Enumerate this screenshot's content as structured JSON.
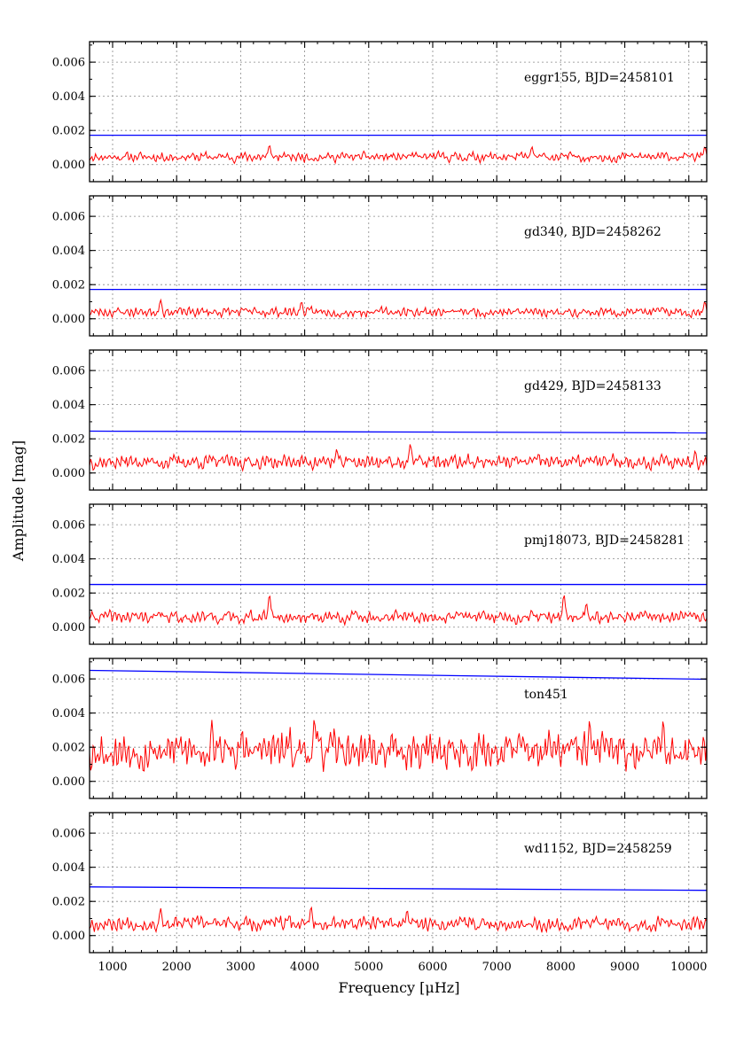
{
  "chart_data": {
    "type": "line",
    "xlabel": "Frequency [μHz]",
    "ylabel": "Amplitude [mag]",
    "xlim": [
      640,
      10280
    ],
    "ylim": [
      -0.001,
      0.0072
    ],
    "xticks": [
      1000,
      2000,
      3000,
      4000,
      5000,
      6000,
      7000,
      8000,
      9000,
      10000
    ],
    "xtick_labels": [
      "1000",
      "2000",
      "3000",
      "4000",
      "5000",
      "6000",
      "7000",
      "8000",
      "9000",
      "10000"
    ],
    "yticks": [
      0.0,
      0.002,
      0.004,
      0.006
    ],
    "ytick_labels": [
      "0.000",
      "0.002",
      "0.004",
      "0.006"
    ],
    "grid": true,
    "series_colors": {
      "amplitude_spectrum": "#ff0000",
      "threshold": "#0000ff"
    },
    "panels": [
      {
        "label": "eggr155, BJD=2458101",
        "threshold": [
          0.00172,
          0.00172
        ],
        "noise_level": 0.00045,
        "noise_spread": 0.0003,
        "peaks": [
          [
            3450,
            0.00115
          ],
          [
            7550,
            0.00105
          ],
          [
            10250,
            0.00105
          ]
        ],
        "seed": 11
      },
      {
        "label": "gd340, BJD=2458262",
        "threshold": [
          0.00172,
          0.00172
        ],
        "noise_level": 0.0004,
        "noise_spread": 0.0003,
        "peaks": [
          [
            1750,
            0.0011
          ],
          [
            3950,
            0.001
          ],
          [
            10250,
            0.001
          ]
        ],
        "seed": 23
      },
      {
        "label": "gd429, BJD=2458133",
        "threshold": [
          0.00245,
          0.00235
        ],
        "noise_level": 0.00065,
        "noise_spread": 0.00045,
        "peaks": [
          [
            5650,
            0.0017
          ],
          [
            4500,
            0.0014
          ],
          [
            10100,
            0.0013
          ]
        ],
        "seed": 37
      },
      {
        "label": "pmj18073, BJD=2458281",
        "threshold": [
          0.0025,
          0.0025
        ],
        "noise_level": 0.0006,
        "noise_spread": 0.0004,
        "peaks": [
          [
            3450,
            0.0019
          ],
          [
            8050,
            0.0019
          ],
          [
            8400,
            0.0014
          ]
        ],
        "seed": 41
      },
      {
        "label": "ton451",
        "threshold": [
          0.0065,
          0.00598
        ],
        "noise_level": 0.0018,
        "noise_spread": 0.0012,
        "peaks": [
          [
            4150,
            0.0037
          ],
          [
            2550,
            0.0036
          ],
          [
            8450,
            0.0036
          ],
          [
            9600,
            0.0036
          ]
        ],
        "seed": 53
      },
      {
        "label": "wd1152, BJD=2458259",
        "threshold": [
          0.00285,
          0.00265
        ],
        "noise_level": 0.0007,
        "noise_spread": 0.00045,
        "peaks": [
          [
            4100,
            0.0017
          ],
          [
            1750,
            0.0016
          ],
          [
            5600,
            0.0015
          ]
        ],
        "seed": 67
      }
    ]
  }
}
